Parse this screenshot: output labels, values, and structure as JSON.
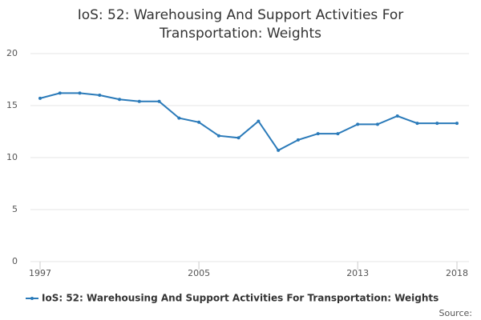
{
  "chart_data": {
    "type": "line",
    "title": "IoS: 52: Warehousing And Support Activities For Transportation: Weights",
    "x": [
      1997,
      1998,
      1999,
      2000,
      2001,
      2002,
      2003,
      2004,
      2005,
      2006,
      2007,
      2008,
      2009,
      2010,
      2011,
      2012,
      2013,
      2014,
      2015,
      2016,
      2017,
      2018
    ],
    "series": [
      {
        "name": "IoS: 52: Warehousing And Support Activities For Transportation: Weights",
        "color": "#2a7ab9",
        "values": [
          15.7,
          16.2,
          16.2,
          16.0,
          15.6,
          15.4,
          15.4,
          13.8,
          13.4,
          12.1,
          11.9,
          13.5,
          10.7,
          11.7,
          12.3,
          12.3,
          13.2,
          13.2,
          14.0,
          13.3,
          13.3,
          13.3
        ]
      }
    ],
    "xlim": [
      1997,
      2018
    ],
    "xticks": [
      1997,
      2005,
      2013,
      2018
    ],
    "ylim": [
      0,
      20
    ],
    "yticks": [
      0,
      5,
      10,
      15,
      20
    ],
    "grid": true,
    "legend": "bottom",
    "source": "Source:"
  }
}
